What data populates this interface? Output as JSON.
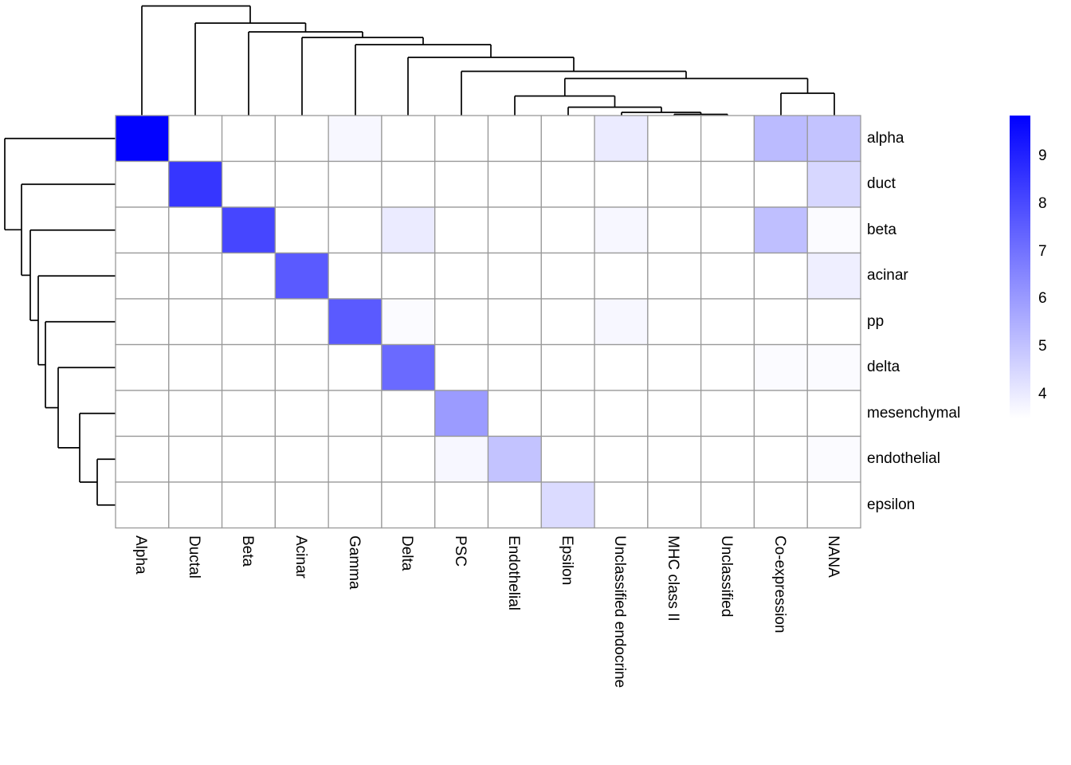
{
  "figure": {
    "kind": "clustered heatmap",
    "background": "#ffffff"
  },
  "chart_data": {
    "type": "heatmap",
    "rows": [
      "alpha",
      "duct",
      "beta",
      "acinar",
      "pp",
      "delta",
      "mesenchymal",
      "endothelial",
      "epsilon"
    ],
    "columns": [
      "Alpha",
      "Ductal",
      "Beta",
      "Acinar",
      "Gamma",
      "Delta",
      "PSC",
      "Endothelial",
      "Epsilon",
      "Unclassified endocrine",
      "MHC class II",
      "Unclassified",
      "Co-expression",
      "NANA"
    ],
    "matrix": [
      [
        9.8,
        3.5,
        3.5,
        3.5,
        3.7,
        3.5,
        3.5,
        3.5,
        3.5,
        4.0,
        3.5,
        3.5,
        5.2,
        5.0
      ],
      [
        3.5,
        8.5,
        3.5,
        3.5,
        3.5,
        3.5,
        3.5,
        3.5,
        3.5,
        3.5,
        3.5,
        3.5,
        3.5,
        4.5
      ],
      [
        3.5,
        3.5,
        8.1,
        3.5,
        3.5,
        4.0,
        3.5,
        3.5,
        3.5,
        3.7,
        3.5,
        3.5,
        5.1,
        3.6
      ],
      [
        3.5,
        3.5,
        3.5,
        7.6,
        3.5,
        3.5,
        3.5,
        3.5,
        3.5,
        3.5,
        3.5,
        3.5,
        3.5,
        3.9
      ],
      [
        3.5,
        3.5,
        3.5,
        3.5,
        7.6,
        3.6,
        3.5,
        3.5,
        3.5,
        3.7,
        3.5,
        3.5,
        3.5,
        3.5
      ],
      [
        3.5,
        3.5,
        3.5,
        3.5,
        3.5,
        7.2,
        3.5,
        3.5,
        3.5,
        3.5,
        3.5,
        3.5,
        3.6,
        3.6
      ],
      [
        3.5,
        3.5,
        3.5,
        3.5,
        3.5,
        3.5,
        6.0,
        3.5,
        3.5,
        3.5,
        3.5,
        3.5,
        3.5,
        3.5
      ],
      [
        3.5,
        3.5,
        3.5,
        3.5,
        3.5,
        3.5,
        3.7,
        5.0,
        3.5,
        3.5,
        3.5,
        3.5,
        3.5,
        3.6
      ],
      [
        3.5,
        3.5,
        3.5,
        3.5,
        3.5,
        3.5,
        3.5,
        3.5,
        4.4,
        3.5,
        3.5,
        3.5,
        3.5,
        3.5
      ]
    ],
    "vmin": 3.5,
    "vmax": 9.85,
    "colormap": {
      "low": "#ffffff",
      "high": "#0000ff"
    },
    "cell_border_color": "#999999",
    "dendrogram_color": "#000000",
    "legend": {
      "ticks": [
        9,
        8,
        7,
        6,
        5,
        4
      ]
    },
    "dendrogram_top": {
      "segments": [
        [
          178,
          145,
          178,
          7.5
        ],
        [
          178,
          7.5,
          314,
          7.5
        ],
        [
          314,
          7.5,
          314,
          29
        ],
        [
          245,
          145,
          245,
          29
        ],
        [
          245,
          29,
          383.5,
          29
        ],
        [
          383.5,
          29,
          383.5,
          40
        ],
        [
          312,
          145,
          312,
          40
        ],
        [
          312,
          40,
          455,
          40
        ],
        [
          455,
          40,
          455,
          47
        ],
        [
          379,
          145,
          379,
          47
        ],
        [
          379,
          47,
          531,
          47
        ],
        [
          531,
          47,
          531,
          56
        ],
        [
          446,
          145,
          446,
          56
        ],
        [
          446,
          56,
          616,
          56
        ],
        [
          616,
          56,
          616,
          72
        ],
        [
          512,
          145,
          512,
          72
        ],
        [
          512,
          72,
          720,
          72
        ],
        [
          720,
          72,
          720,
          89.5
        ],
        [
          579,
          145,
          579,
          89.5
        ],
        [
          579,
          89.5,
          861,
          89.5
        ],
        [
          861,
          89.5,
          861,
          98.5
        ],
        [
          708.8,
          120.5,
          708.8,
          98.5
        ],
        [
          708.8,
          98.5,
          1013.5,
          98.5
        ],
        [
          1013.5,
          98.5,
          1013.5,
          117
        ],
        [
          980,
          145,
          980,
          117
        ],
        [
          980,
          117,
          1047,
          117
        ],
        [
          1047,
          117,
          1047,
          145
        ],
        [
          646,
          145,
          646,
          120.5
        ],
        [
          646,
          120.5,
          771.5,
          120.5
        ],
        [
          771.5,
          120.5,
          771.5,
          134.5
        ],
        [
          713,
          145,
          713,
          134.5
        ],
        [
          713,
          134.5,
          830,
          134.5
        ],
        [
          830,
          134.5,
          830,
          141
        ],
        [
          780,
          145,
          780,
          141
        ],
        [
          780,
          141,
          879.5,
          141
        ],
        [
          879.5,
          141,
          879.5,
          143.5
        ],
        [
          846,
          145,
          846,
          143.5
        ],
        [
          846,
          143.5,
          913,
          143.5
        ],
        [
          913,
          143.5,
          913,
          145
        ]
      ]
    },
    "dendrogram_left": {
      "segments": [
        [
          145,
          173.75,
          6,
          173.75
        ],
        [
          6,
          173.75,
          6,
          288.3
        ],
        [
          6,
          288.3,
          27,
          288.3
        ],
        [
          145,
          231.25,
          27,
          231.25
        ],
        [
          27,
          231.25,
          27,
          345.4
        ],
        [
          27,
          345.4,
          38,
          345.4
        ],
        [
          145,
          288.75,
          38,
          288.75
        ],
        [
          38,
          288.75,
          38,
          402
        ],
        [
          38,
          402,
          48,
          402
        ],
        [
          145,
          346.25,
          48,
          346.25
        ],
        [
          48,
          346.25,
          48,
          457.7
        ],
        [
          48,
          457.7,
          57,
          457.7
        ],
        [
          145,
          403.75,
          57,
          403.75
        ],
        [
          57,
          403.75,
          57,
          511.6
        ],
        [
          57,
          511.6,
          73,
          511.6
        ],
        [
          145,
          461.25,
          73,
          461.25
        ],
        [
          73,
          461.25,
          73,
          561.9
        ],
        [
          73,
          561.9,
          100,
          561.9
        ],
        [
          145,
          518.75,
          100,
          518.75
        ],
        [
          100,
          518.75,
          100,
          605
        ],
        [
          100,
          605,
          122,
          605
        ],
        [
          145,
          576.25,
          122,
          576.25
        ],
        [
          122,
          576.25,
          122,
          633.75
        ],
        [
          122,
          633.75,
          145,
          633.75
        ]
      ]
    }
  }
}
